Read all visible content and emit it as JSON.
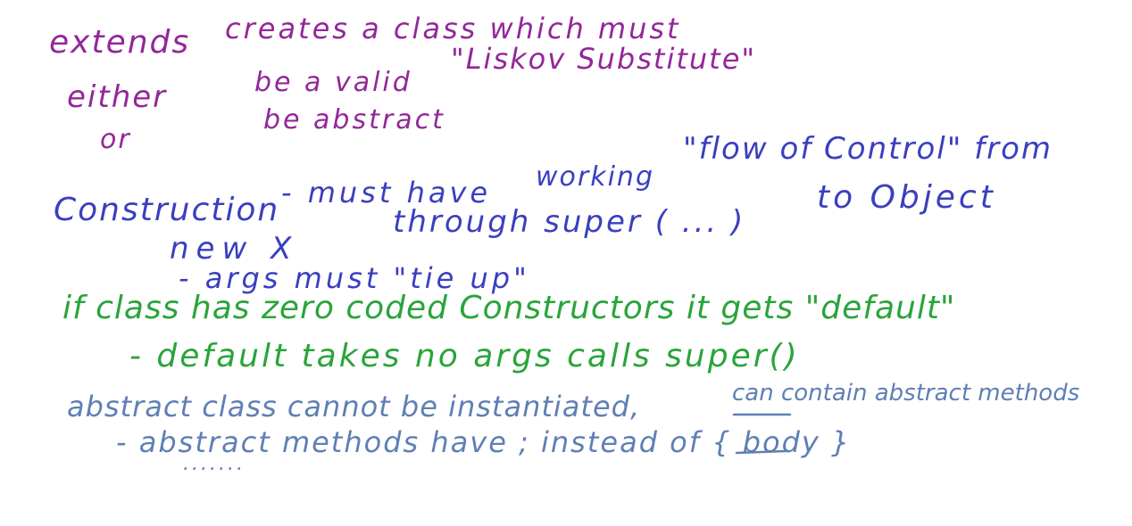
{
  "colors": {
    "purple": "#93279a",
    "blue": "#3a3fbf",
    "green": "#2aa43a",
    "steel": "#5f7fb5",
    "background": "#ffffff"
  },
  "notes": {
    "extends_term": "extends",
    "extends_desc": "creates a class which must",
    "either": "either",
    "liskov_a": "be a valid",
    "liskov_b": "\"Liskov Substitute\"",
    "or": "or",
    "abstract_alt": "be abstract",
    "flow": "\"flow of Control\" from",
    "construction": "Construction",
    "dash_must": "- must have",
    "working": "working",
    "new_x": "new X",
    "through_super": "through super ( ... )",
    "to_object": "to Object",
    "args_tie": "- args must \"tie up\"",
    "if_class_zero": "if class has zero coded Constructors it gets \"default\"",
    "default_takes": "- default takes no args calls super()",
    "abstract_class_1": "abstract class cannot be instantiated,",
    "can_contain": "can contain abstract methods",
    "abstract_methods_have": "- abstract methods have ; instead of { body }",
    "ellipsis": "......."
  }
}
